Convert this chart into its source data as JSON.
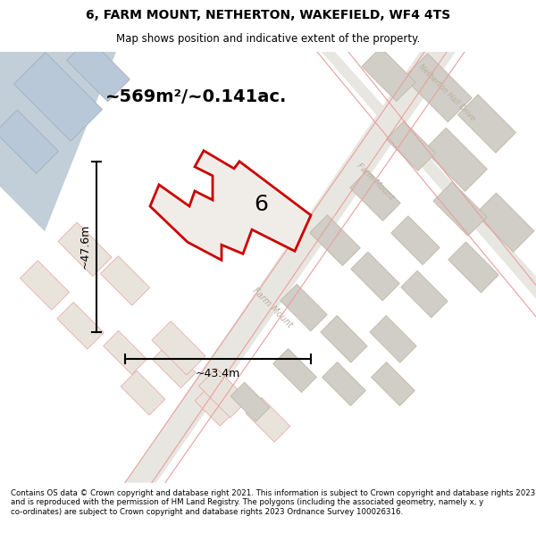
{
  "title": "6, FARM MOUNT, NETHERTON, WAKEFIELD, WF4 4TS",
  "subtitle": "Map shows position and indicative extent of the property.",
  "area_text": "~569m²/~0.141ac.",
  "width_label": "~43.4m",
  "height_label": "~47.6m",
  "plot_number": "6",
  "footer": "Contains OS data © Crown copyright and database right 2021. This information is subject to Crown copyright and database rights 2023 and is reproduced with the permission of HM Land Registry. The polygons (including the associated geometry, namely x, y co-ordinates) are subject to Crown copyright and database rights 2023 Ordnance Survey 100026316.",
  "bg_color": "#f0efe8",
  "title_bg": "#ffffff",
  "footer_bg": "#ffffff",
  "plot_fill": "#f0ede8",
  "plot_edge": "#cc0000",
  "building_fill": "#d3d0c8",
  "building_edge": "#c0b8a8",
  "pink_line": "#e8a0a0",
  "light_blue": "#c2ced8",
  "road_fill": "#e8e6e0",
  "white_road": "#ffffff",
  "street_label_color": "#b8b0a0"
}
